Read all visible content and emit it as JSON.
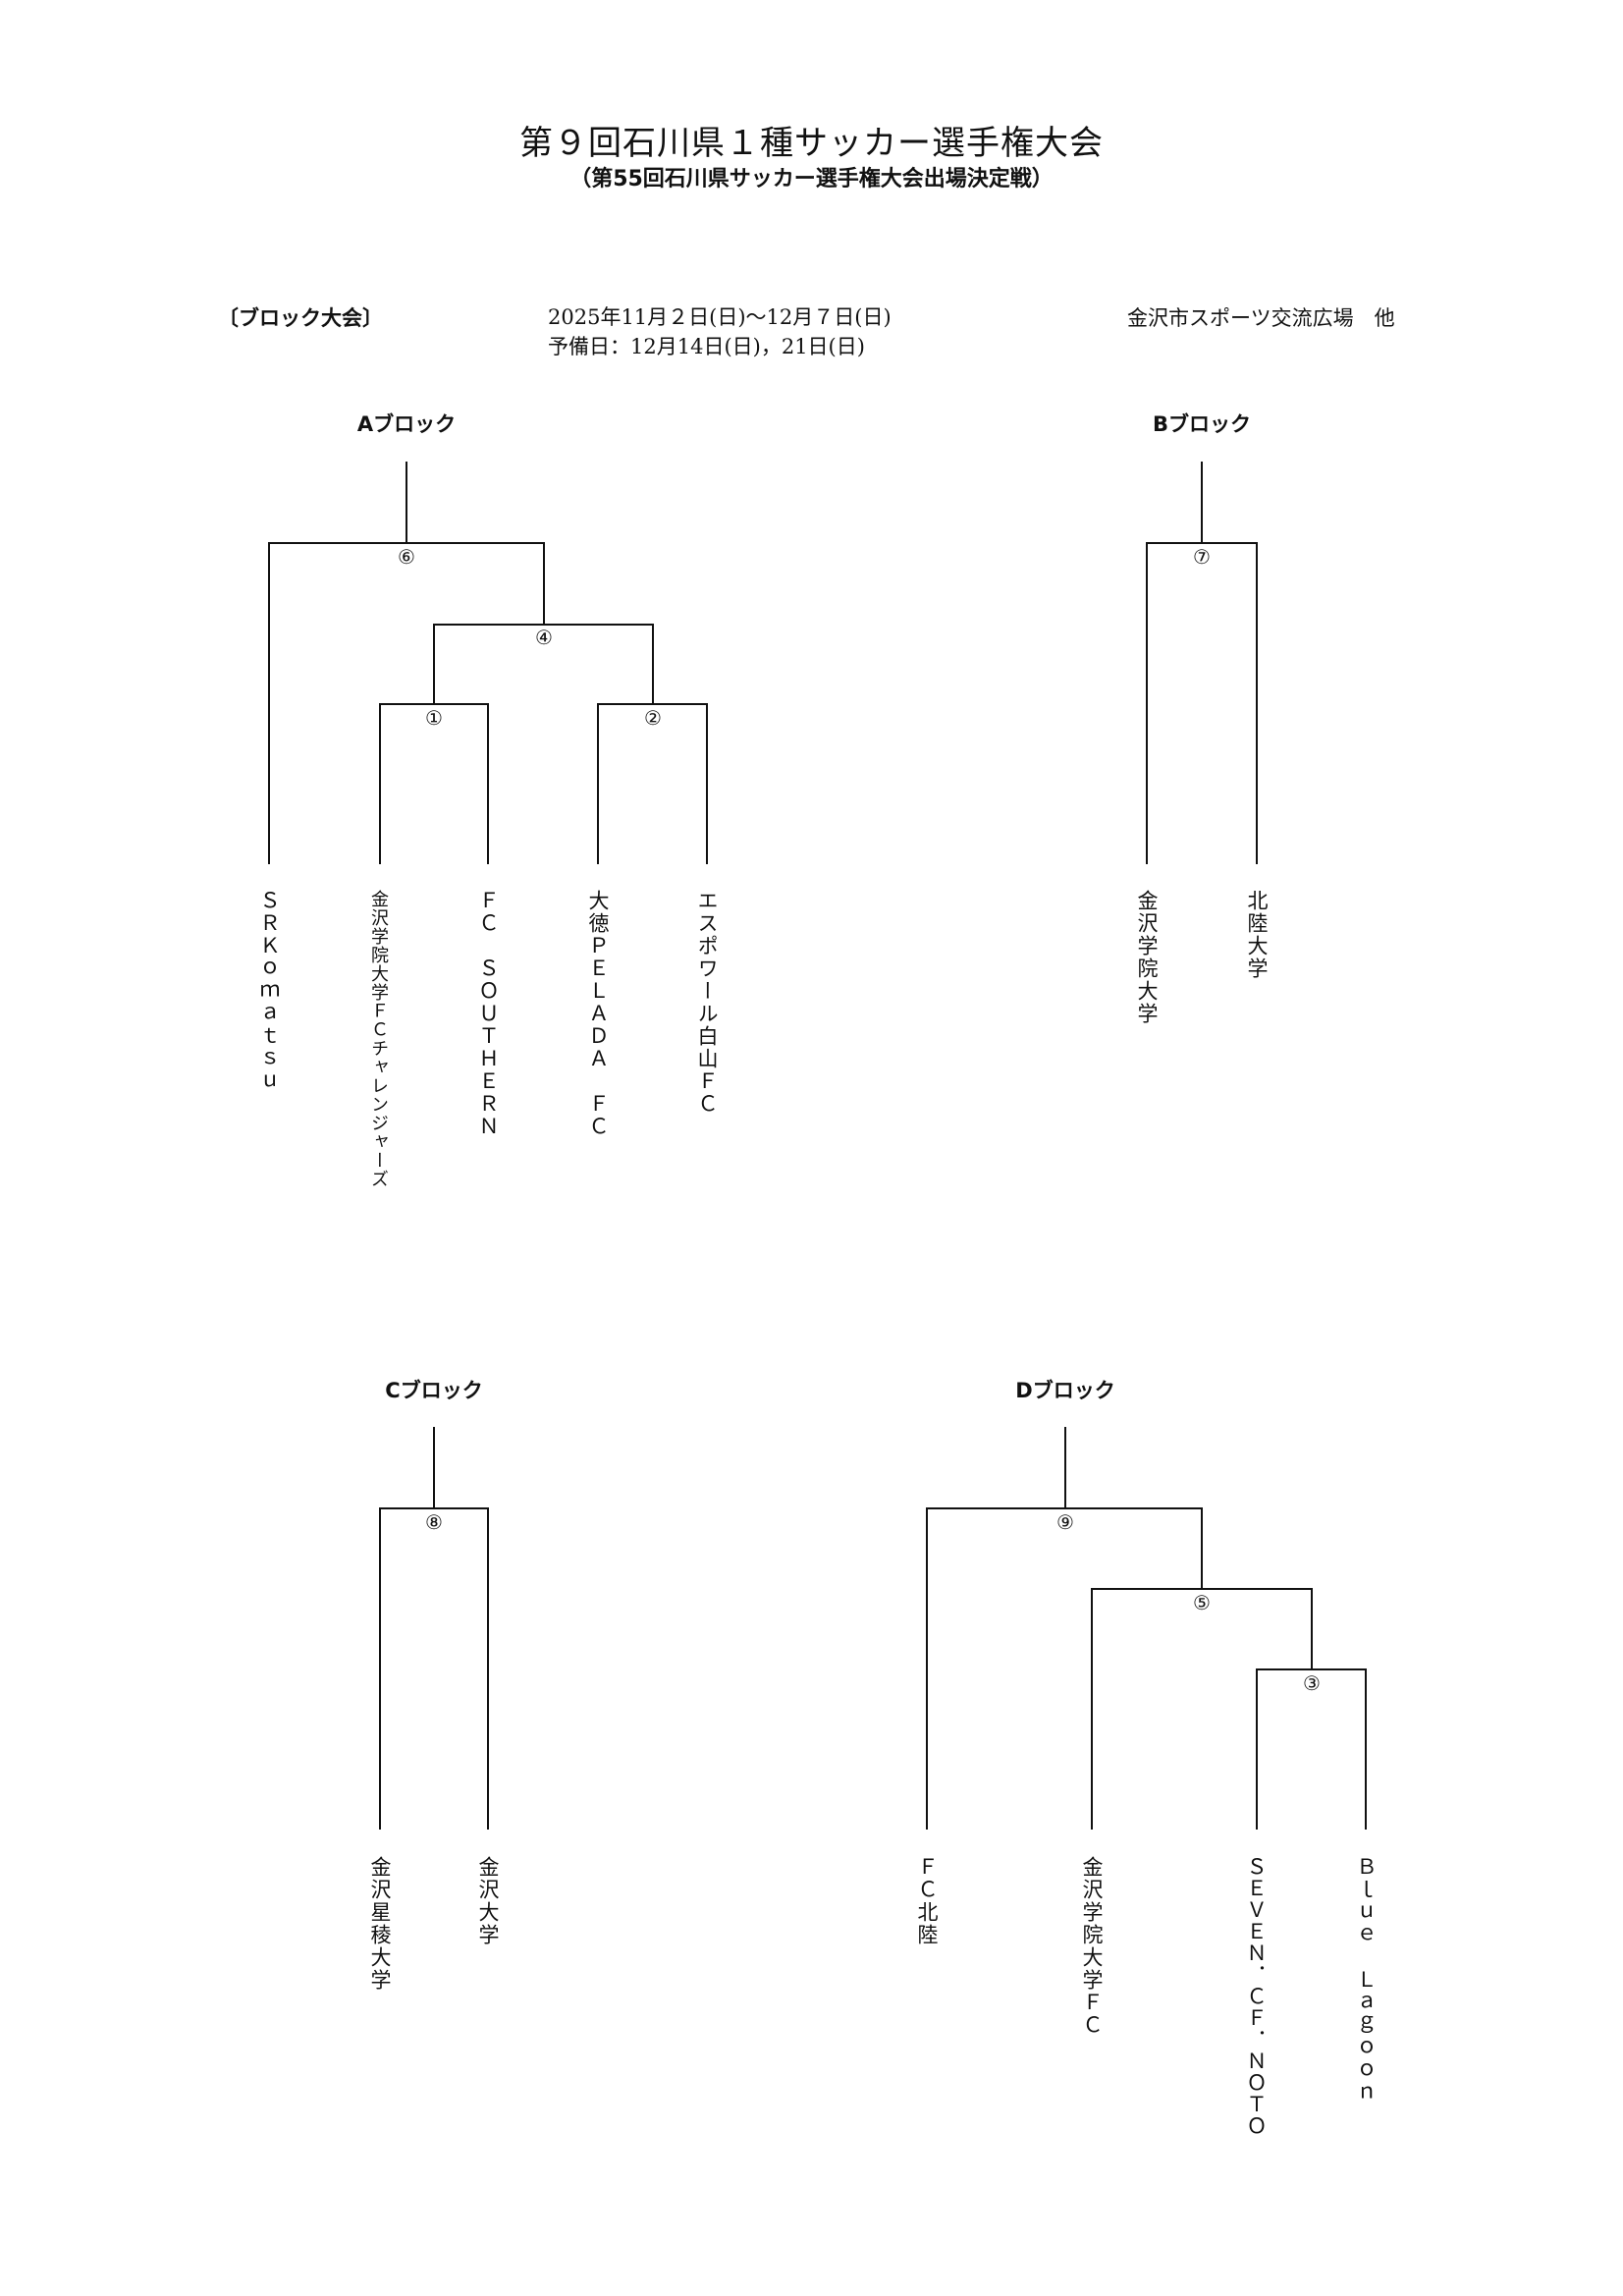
{
  "title": "第９回石川県１種サッカー選手権大会",
  "subtitle": "（第55回石川県サッカー選手権大会出場決定戦）",
  "info": {
    "section_label": "〔ブロック大会〕",
    "dates_line1": "2025年11月２日(日)～12月７日(日)",
    "dates_line2": "予備日：12月14日(日)，21日(日)",
    "venue": "金沢市スポーツ交流広場　他"
  },
  "blocks": {
    "a": {
      "heading": "Aブロック",
      "matches": [
        "⑥",
        "④",
        "①",
        "②"
      ],
      "teams": [
        "ＳＲＫｏｍａｔｓｕ",
        "金沢学院大学ＦＣチャレンジャーズ",
        "ＦＣ　ＳＯＵＴＨＥＲＮ",
        "大徳ＰＥＬＡＤＡ　ＦＣ",
        "エスポワール白山ＦＣ"
      ]
    },
    "b": {
      "heading": "Bブロック",
      "matches": [
        "⑦"
      ],
      "teams": [
        "金沢学院大学",
        "北陸大学"
      ]
    },
    "c": {
      "heading": "Cブロック",
      "matches": [
        "⑧"
      ],
      "teams": [
        "金沢星稜大学",
        "金沢大学"
      ]
    },
    "d": {
      "heading": "Dブロック",
      "matches": [
        "⑨",
        "⑤",
        "③"
      ],
      "teams": [
        "ＦＣ北陸",
        "金沢学院大学ＦＣ",
        "ＳＥＶＥＮ．ＣＦ．ＮＯＴＯ",
        "Ｂｌｕｅ　Ｌａｇｏｏｎ"
      ]
    }
  }
}
